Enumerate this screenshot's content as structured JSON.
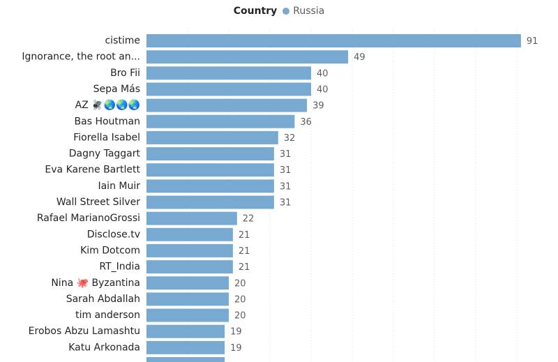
{
  "chart_data": {
    "type": "bar",
    "orientation": "horizontal",
    "legend": {
      "title": "Country",
      "placement": "top-center",
      "entries": [
        {
          "name": "Russia",
          "color": "#77a9d1"
        }
      ]
    },
    "x_range": [
      0,
      100
    ],
    "grid": "vertical dotted",
    "bar_color": "#77a9d1",
    "categories": [
      "cistime",
      "Ignorance, the root an...",
      "Bro Fii",
      "Sepa Más",
      "AZ 🪰🌏🌏🌏",
      "Bas Houtman",
      "Fiorella Isabel",
      "Dagny Taggart",
      "Eva Karene Bartlett",
      "Iain Muir",
      "Wall Street Silver",
      "Rafael MarianoGrossi",
      "Disclose.tv",
      "Kim Dotcom",
      "RT_India",
      "Nina 🐙 Byzantina",
      "Sarah Abdallah",
      "tim anderson",
      "Erobos Abzu Lamashtu",
      "Katu Arkonada"
    ],
    "series": [
      {
        "name": "Russia",
        "values": [
          91,
          49,
          40,
          40,
          39,
          36,
          32,
          31,
          31,
          31,
          31,
          22,
          21,
          21,
          21,
          20,
          20,
          20,
          19,
          19
        ]
      }
    ]
  }
}
